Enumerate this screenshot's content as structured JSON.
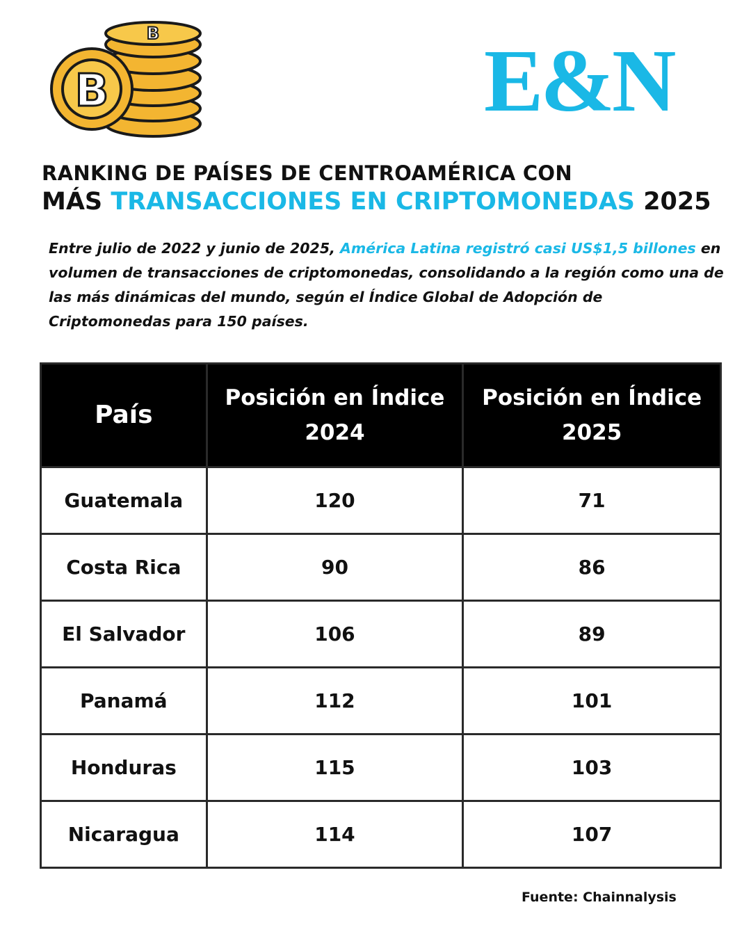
{
  "logo": "E&N",
  "title": {
    "line1": "RANKING DE PAÍSES DE CENTROAMÉRICA CON",
    "line2": [
      "MÁS",
      "TRANSACCIONES EN CRIPTOMONEDAS",
      "2025"
    ]
  },
  "intro": [
    "Entre julio de 2022 y junio de 2025,",
    "América Latina registró casi US$1,5 billones",
    "en volumen de transacciones de criptomonedas, consolidando a la región como una de las más dinámicas del mundo, según el Índice Global de Adopción de Criptomonedas para 150 países."
  ],
  "table": {
    "headers": [
      [
        "País"
      ],
      [
        "Posición en Índice",
        "2024"
      ],
      [
        "Posición en Índice",
        "2025"
      ]
    ],
    "rows": [
      [
        "Guatemala",
        120,
        71
      ],
      [
        "Costa Rica",
        90,
        86
      ],
      [
        "El Salvador",
        106,
        89
      ],
      [
        "Panamá",
        112,
        101
      ],
      [
        "Honduras",
        115,
        103
      ],
      [
        "Nicaragua",
        114,
        107
      ]
    ]
  },
  "source": "Fuente: Chainnalysis"
}
